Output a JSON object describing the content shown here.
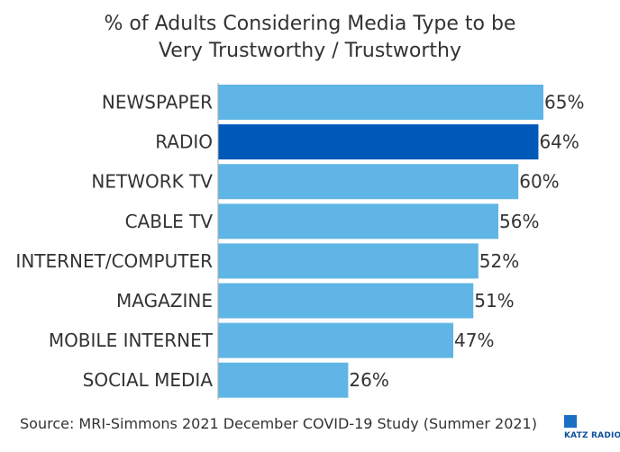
{
  "chart_data": {
    "type": "bar",
    "orientation": "horizontal",
    "title": "% of Adults Considering Media Type to be",
    "subtitle": "Very Trustworthy / Trustworthy",
    "categories": [
      "NEWSPAPER",
      "RADIO",
      "NETWORK TV",
      "CABLE TV",
      "INTERNET/COMPUTER",
      "MAGAZINE",
      "MOBILE INTERNET",
      "SOCIAL MEDIA"
    ],
    "values": [
      65,
      64,
      60,
      56,
      52,
      51,
      47,
      26
    ],
    "value_labels": [
      "65%",
      "64%",
      "60%",
      "56%",
      "52%",
      "51%",
      "47%",
      "26%"
    ],
    "xlabel": "",
    "ylabel": "",
    "xlim": [
      0,
      65
    ],
    "grid": false,
    "colors": {
      "default_bar": "#5fb5e5",
      "highlight_bar": "#0058b8",
      "axis": "#aaaaaa"
    },
    "highlight_index": 1
  },
  "footer": {
    "source": "Source: MRI-Simmons 2021 December COVID-19 Study (Summer 2021)",
    "logo_text": "KATZ RADIO"
  }
}
